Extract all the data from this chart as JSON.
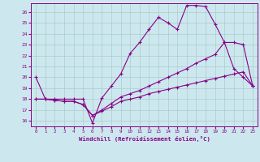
{
  "xlabel": "Windchill (Refroidissement éolien,°C)",
  "bg_color": "#cce8ee",
  "line_color": "#880088",
  "grid_color": "#aacccc",
  "xlim": [
    -0.5,
    23.5
  ],
  "ylim": [
    15.5,
    26.8
  ],
  "xticks": [
    0,
    1,
    2,
    3,
    4,
    5,
    6,
    7,
    8,
    9,
    10,
    11,
    12,
    13,
    14,
    15,
    16,
    17,
    18,
    19,
    20,
    21,
    22,
    23
  ],
  "yticks": [
    16,
    17,
    18,
    19,
    20,
    21,
    22,
    23,
    24,
    25,
    26
  ],
  "s1_y": [
    20,
    18,
    18,
    18,
    18,
    18,
    15.8,
    18.1,
    19.2,
    20.3,
    22.2,
    23.2,
    24.4,
    25.5,
    25.0,
    24.4,
    26.6,
    26.6,
    26.5,
    24.9,
    23.2,
    20.8,
    20,
    19.2
  ],
  "s2_y": [
    18,
    18,
    17.9,
    17.8,
    17.8,
    17.5,
    16.5,
    17.0,
    17.6,
    18.2,
    18.5,
    18.8,
    19.2,
    19.6,
    20.0,
    20.4,
    20.8,
    21.3,
    21.7,
    22.1,
    23.2,
    23.2,
    23.0,
    19.2
  ],
  "s3_y": [
    18,
    18,
    17.9,
    17.8,
    17.8,
    17.5,
    16.5,
    16.9,
    17.3,
    17.8,
    18.0,
    18.2,
    18.5,
    18.7,
    18.9,
    19.1,
    19.3,
    19.5,
    19.7,
    19.9,
    20.1,
    20.3,
    20.5,
    19.2
  ]
}
